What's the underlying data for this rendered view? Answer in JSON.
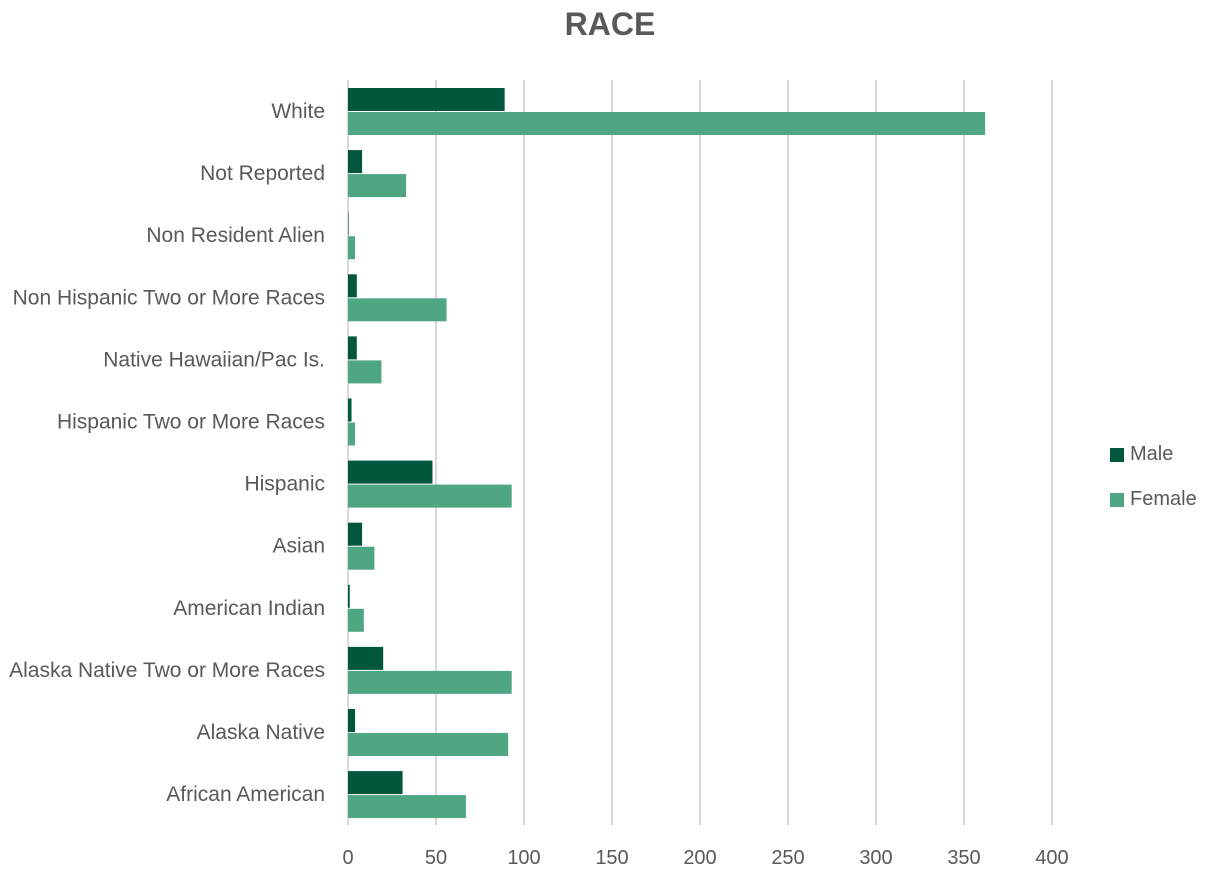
{
  "chart_data": {
    "type": "bar",
    "orientation": "horizontal",
    "title": "RACE",
    "categories": [
      "White",
      "Not Reported",
      "Non Resident Alien",
      "Non Hispanic Two or More Races",
      "Native Hawaiian/Pac Is.",
      "Hispanic Two or More Races",
      "Hispanic",
      "Asian",
      "American Indian",
      "Alaska Native Two or More Races",
      "Alaska Native",
      "African American"
    ],
    "series": [
      {
        "name": "Male",
        "color": "#00573d",
        "values": [
          89,
          8,
          0,
          5,
          5,
          2,
          48,
          8,
          1,
          20,
          4,
          31
        ]
      },
      {
        "name": "Female",
        "color": "#4fa683",
        "values": [
          362,
          33,
          4,
          56,
          19,
          4,
          93,
          15,
          9,
          93,
          91,
          67
        ]
      }
    ],
    "xlim": [
      0,
      400
    ],
    "xticks": [
      "0",
      "50",
      "100",
      "150",
      "200",
      "250",
      "300",
      "350",
      "400"
    ],
    "grid": "vertical",
    "legend_position": "right"
  }
}
